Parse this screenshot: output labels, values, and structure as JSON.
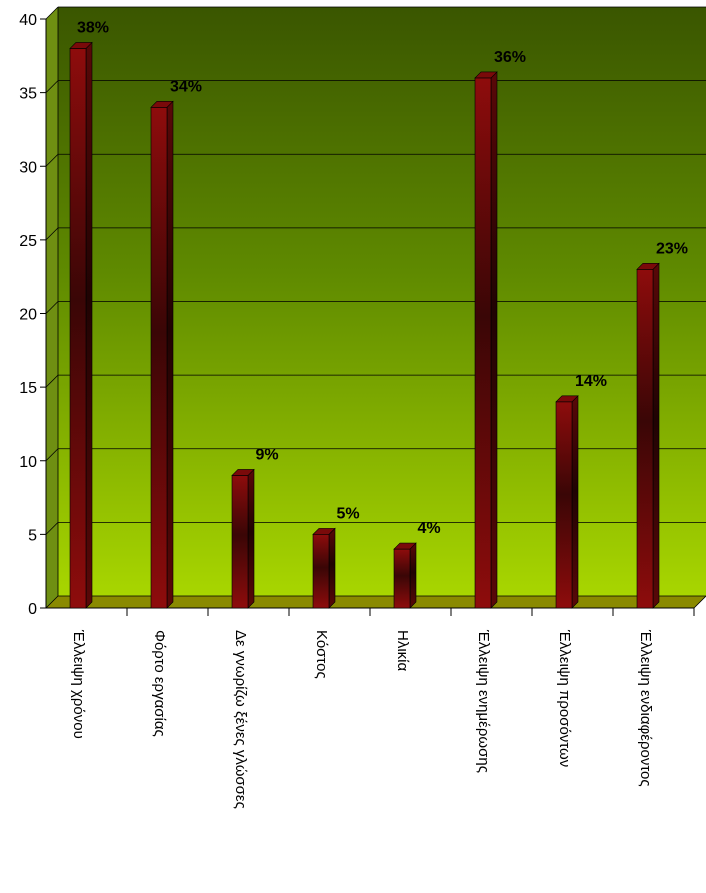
{
  "chart_data": {
    "type": "bar",
    "title": "",
    "xlabel": "",
    "ylabel": "",
    "categories": [
      "Έλλειψη χρόνου",
      "Φόρτο εργασίας",
      "Δε γνωρίζω ξένες γλώσσες",
      "Κόστος",
      "Ηλικία",
      "Έλλειψη ενημέρωσης",
      "Έλλειψη προσόντων",
      "Έλλειψη ενδιαφέροντος"
    ],
    "values": [
      38,
      34,
      9,
      5,
      4,
      36,
      14,
      23
    ],
    "data_labels": [
      "38%",
      "34%",
      "9%",
      "5%",
      "4%",
      "36%",
      "14%",
      "23%"
    ],
    "y_ticks": [
      "0",
      "5",
      "10",
      "15",
      "20",
      "25",
      "30",
      "35",
      "40"
    ],
    "ylim": [
      0,
      40
    ],
    "grid": true,
    "legend": "none",
    "colors": {
      "bar": "#8b0a0a",
      "bar_dark": "#2a0505",
      "wall_top": "#3d5a00",
      "wall_bottom": "#a6d400",
      "floor": "#8a8a00",
      "gridline": "#000000"
    }
  }
}
